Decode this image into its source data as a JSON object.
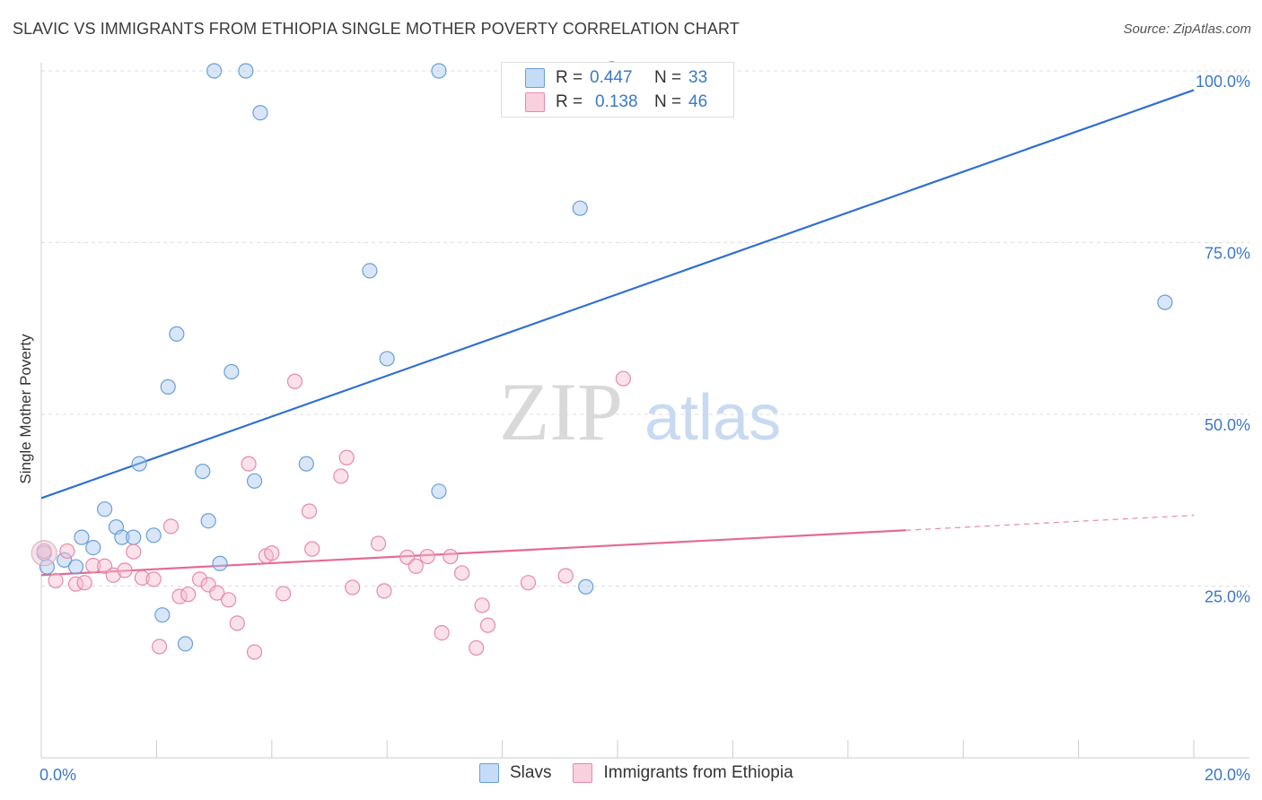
{
  "title": "SLAVIC VS IMMIGRANTS FROM ETHIOPIA SINGLE MOTHER POVERTY CORRELATION CHART",
  "source": "Source: ZipAtlas.com",
  "watermark": {
    "zip": "ZIP",
    "atlas": "atlas"
  },
  "legend": {
    "rows": [
      {
        "r_label": "R =",
        "r_value": "0.447",
        "n_label": "N =",
        "n_value": "33",
        "color": "#a8c8f0",
        "stroke": "#6a9fd8"
      },
      {
        "r_label": "R =",
        "r_value": "0.138",
        "n_label": "N =",
        "n_value": "46",
        "color": "#f6bcd0",
        "stroke": "#e68aa8"
      }
    ]
  },
  "bottom_legend": {
    "slavs": "Slavs",
    "ethiopia": "Immigrants from Ethiopia"
  },
  "chart_data": {
    "type": "scatter",
    "xlabel": "",
    "ylabel": "Single Mother Poverty",
    "xlim": [
      0,
      20
    ],
    "ylim": [
      0,
      105
    ],
    "x_tick_labels": [
      "0.0%",
      "20.0%"
    ],
    "y_ticks": [
      25,
      50,
      75,
      100
    ],
    "y_tick_labels": [
      "25.0%",
      "50.0%",
      "75.0%",
      "100.0%"
    ],
    "grid": true,
    "legend_position": "top-center",
    "series": [
      {
        "name": "Slavs",
        "color": "#a8c8f0",
        "stroke": "#6a9fd8",
        "line_color": "#2f6fcf",
        "trend": {
          "x0": 0,
          "y0": 37.8,
          "x1": 20,
          "y1": 97.2,
          "dashed_from": null
        },
        "points": [
          [
            0.1,
            27.8
          ],
          [
            0.4,
            28.8
          ],
          [
            0.6,
            27.8
          ],
          [
            0.7,
            32.1
          ],
          [
            0.9,
            30.6
          ],
          [
            1.1,
            36.2
          ],
          [
            1.3,
            33.6
          ],
          [
            1.4,
            32.1
          ],
          [
            1.6,
            32.1
          ],
          [
            1.7,
            42.8
          ],
          [
            1.95,
            32.4
          ],
          [
            2.1,
            20.8
          ],
          [
            2.2,
            54.0
          ],
          [
            2.35,
            61.7
          ],
          [
            2.5,
            16.6
          ],
          [
            2.8,
            41.7
          ],
          [
            2.9,
            34.5
          ],
          [
            3.0,
            100.0
          ],
          [
            3.1,
            28.3
          ],
          [
            3.3,
            56.2
          ],
          [
            3.55,
            100.0
          ],
          [
            3.7,
            40.3
          ],
          [
            3.8,
            93.9
          ],
          [
            4.6,
            42.8
          ],
          [
            5.7,
            70.9
          ],
          [
            6.0,
            58.1
          ],
          [
            6.9,
            100.0
          ],
          [
            6.9,
            38.8
          ],
          [
            9.35,
            80.0
          ],
          [
            9.45,
            24.9
          ],
          [
            9.9,
            100.3
          ],
          [
            19.5,
            66.3
          ],
          [
            0.05,
            29.8
          ]
        ]
      },
      {
        "name": "Immigrants from Ethiopia",
        "color": "#f6bcd0",
        "stroke": "#e68aa8",
        "line_color": "#e46a94",
        "trend": {
          "x0": 0,
          "y0": 26.6,
          "x1": 20,
          "y1": 35.3,
          "dashed_from": 15.0
        },
        "points": [
          [
            0.05,
            30.1
          ],
          [
            0.25,
            25.8
          ],
          [
            0.45,
            30.1
          ],
          [
            0.6,
            25.3
          ],
          [
            0.75,
            25.5
          ],
          [
            0.9,
            28.0
          ],
          [
            1.1,
            27.9
          ],
          [
            1.25,
            26.6
          ],
          [
            1.45,
            27.3
          ],
          [
            1.6,
            30.0
          ],
          [
            1.75,
            26.2
          ],
          [
            1.95,
            26.0
          ],
          [
            2.05,
            16.2
          ],
          [
            2.25,
            33.7
          ],
          [
            2.4,
            23.5
          ],
          [
            2.55,
            23.8
          ],
          [
            2.75,
            26.0
          ],
          [
            2.9,
            25.2
          ],
          [
            3.05,
            24.0
          ],
          [
            3.25,
            23.0
          ],
          [
            3.4,
            19.6
          ],
          [
            3.6,
            42.8
          ],
          [
            3.7,
            15.4
          ],
          [
            3.9,
            29.4
          ],
          [
            4.0,
            29.8
          ],
          [
            4.2,
            23.9
          ],
          [
            4.4,
            54.8
          ],
          [
            4.65,
            35.9
          ],
          [
            4.7,
            30.4
          ],
          [
            5.2,
            41.0
          ],
          [
            5.3,
            43.7
          ],
          [
            5.4,
            24.8
          ],
          [
            5.85,
            31.2
          ],
          [
            5.95,
            24.3
          ],
          [
            6.35,
            29.2
          ],
          [
            6.5,
            27.9
          ],
          [
            6.7,
            29.3
          ],
          [
            6.95,
            18.2
          ],
          [
            7.1,
            29.3
          ],
          [
            7.3,
            26.9
          ],
          [
            7.55,
            16.0
          ],
          [
            7.65,
            22.2
          ],
          [
            7.75,
            19.3
          ],
          [
            8.45,
            25.5
          ],
          [
            9.1,
            26.5
          ],
          [
            10.1,
            55.2
          ]
        ]
      }
    ]
  }
}
